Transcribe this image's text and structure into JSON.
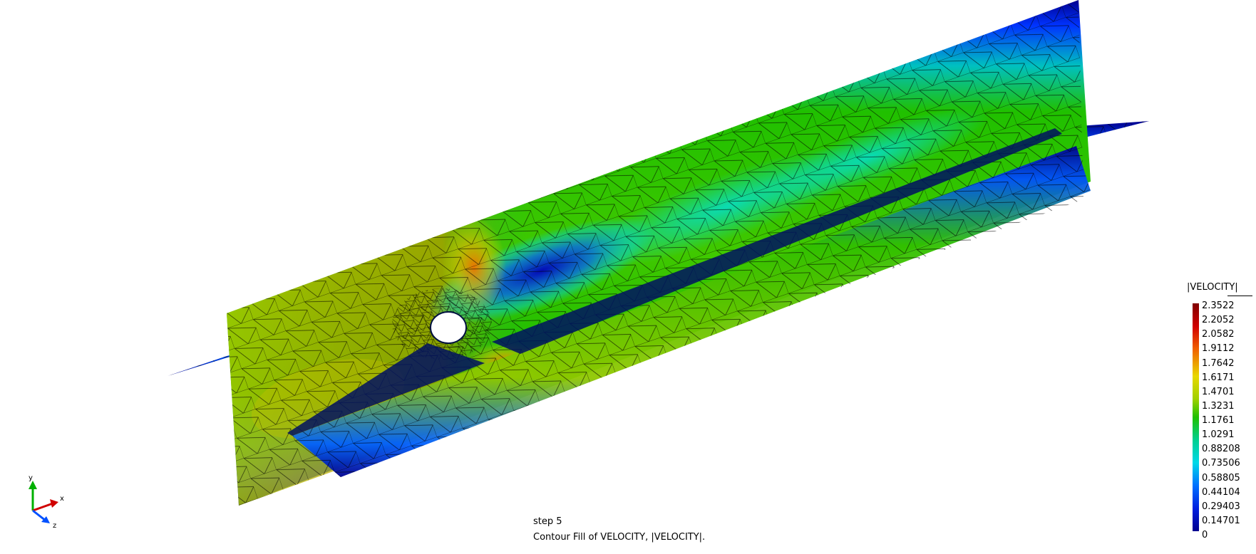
{
  "step_label": "step 5",
  "caption": "Contour Fill of VELOCITY, |VELOCITY|.",
  "legend": {
    "title": "|VELOCITY|",
    "ticks": [
      "2.3522",
      "2.2052",
      "2.0582",
      "1.9112",
      "1.7642",
      "1.6171",
      "1.4701",
      "1.3231",
      "1.1761",
      "1.0291",
      "0.88208",
      "0.73506",
      "0.58805",
      "0.44104",
      "0.29403",
      "0.14701",
      "0"
    ]
  },
  "axes": {
    "x": "x",
    "y": "y",
    "z": "z"
  },
  "colors": {
    "low": "#00008f",
    "blue": "#0033ff",
    "cyan": "#00e0e8",
    "green": "#00c000",
    "green_yellow": "#9ad000",
    "yellow": "#e0e000",
    "orange": "#f08a00",
    "red": "#c00000",
    "dark_red": "#800000"
  }
}
